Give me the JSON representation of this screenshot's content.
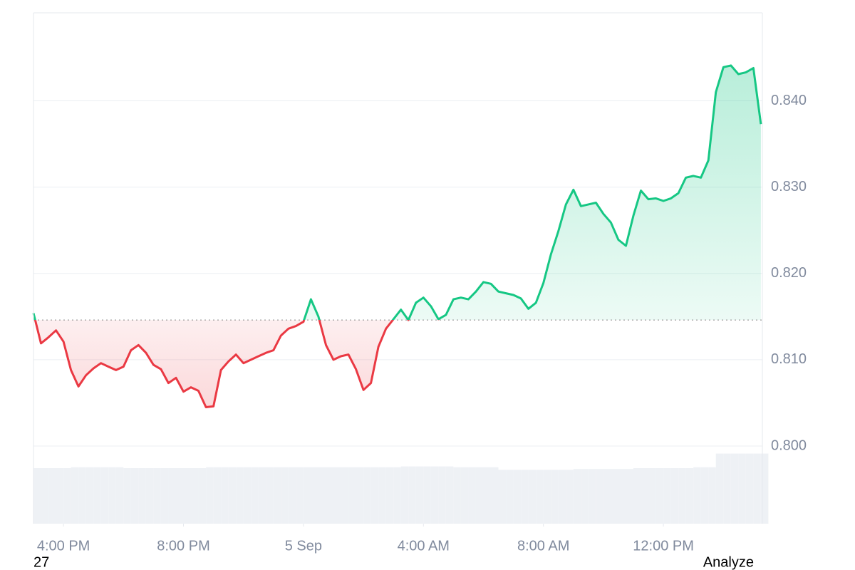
{
  "chart_data": {
    "type": "line",
    "x": [
      0,
      0.25,
      0.5,
      0.75,
      1,
      1.25,
      1.5,
      1.75,
      2,
      2.25,
      2.5,
      2.75,
      3,
      3.25,
      3.5,
      3.75,
      4,
      4.25,
      4.5,
      4.75,
      5,
      5.25,
      5.5,
      5.75,
      6,
      6.25,
      6.5,
      6.75,
      7,
      7.25,
      7.5,
      7.75,
      8,
      8.25,
      8.5,
      8.75,
      9,
      9.25,
      9.5,
      9.75,
      10,
      10.25,
      10.5,
      10.75,
      11,
      11.25,
      11.5,
      11.75,
      12,
      12.25,
      12.5,
      12.75,
      13,
      13.25,
      13.5,
      13.75,
      14,
      14.25,
      14.5,
      14.75,
      15,
      15.25,
      15.5,
      15.75,
      16,
      16.25,
      16.5,
      16.75,
      17,
      17.25,
      17.5,
      17.75,
      18,
      18.25,
      18.5,
      18.75,
      19,
      19.25,
      19.5,
      19.75,
      20,
      20.25,
      20.5,
      20.75,
      21,
      21.25,
      21.5,
      21.75,
      22,
      22.25,
      22.5,
      22.75,
      23,
      23.25,
      23.5,
      23.75,
      24,
      24.25
    ],
    "values": [
      0.8154,
      0.8119,
      0.8126,
      0.8134,
      0.8121,
      0.8088,
      0.8069,
      0.8082,
      0.809,
      0.8096,
      0.8092,
      0.8088,
      0.8092,
      0.8111,
      0.8117,
      0.8108,
      0.8094,
      0.8089,
      0.8073,
      0.8079,
      0.8063,
      0.8068,
      0.8064,
      0.8045,
      0.8046,
      0.8088,
      0.8098,
      0.8106,
      0.8096,
      0.81,
      0.8104,
      0.8108,
      0.8111,
      0.8128,
      0.8136,
      0.8139,
      0.8144,
      0.817,
      0.815,
      0.8117,
      0.81,
      0.8104,
      0.8106,
      0.8089,
      0.8065,
      0.8073,
      0.8115,
      0.8136,
      0.8147,
      0.8158,
      0.8146,
      0.8166,
      0.8172,
      0.8162,
      0.8147,
      0.8152,
      0.817,
      0.8172,
      0.817,
      0.8179,
      0.819,
      0.8188,
      0.8179,
      0.8177,
      0.8175,
      0.8171,
      0.8159,
      0.8166,
      0.8189,
      0.8222,
      0.8249,
      0.828,
      0.8297,
      0.8278,
      0.828,
      0.8282,
      0.8269,
      0.8259,
      0.8239,
      0.8232,
      0.8267,
      0.8296,
      0.8286,
      0.8287,
      0.8284,
      0.8287,
      0.8293,
      0.8311,
      0.8313,
      0.8311,
      0.8331,
      0.841,
      0.8439,
      0.8441,
      0.8431,
      0.8433,
      0.8438,
      0.8373
    ],
    "volume": [
      65,
      65,
      65,
      65,
      65,
      66,
      66,
      66,
      66,
      66,
      66,
      66,
      65,
      65,
      65,
      65,
      65,
      65,
      65,
      65,
      65,
      65,
      65,
      66,
      66,
      66,
      66,
      66,
      66,
      66,
      66,
      66,
      66,
      66,
      66,
      66,
      66,
      66,
      66,
      66,
      66,
      66,
      66,
      66,
      66,
      66,
      66,
      66,
      66,
      67,
      67,
      67,
      67,
      67,
      67,
      67,
      66,
      66,
      66,
      66,
      66,
      66,
      63,
      63,
      63,
      63,
      63,
      63,
      63,
      63,
      63,
      63,
      64,
      64,
      64,
      64,
      64,
      64,
      64,
      64,
      65,
      65,
      65,
      65,
      65,
      65,
      65,
      65,
      66,
      66,
      66,
      82,
      82,
      82,
      82,
      82,
      82,
      82
    ],
    "baseline": 0.8146,
    "up_color": "#16c784",
    "down_color": "#ea3943",
    "volume_color": "#eef1f5",
    "xlim": [
      0,
      24.3
    ],
    "ylim": [
      0.791,
      0.8502
    ],
    "vlim": [
      0,
      100
    ],
    "xticks": [
      {
        "value": 1,
        "label": "4:00 PM"
      },
      {
        "value": 5,
        "label": "8:00 PM"
      },
      {
        "value": 9,
        "label": "5 Sep"
      },
      {
        "value": 13,
        "label": "4:00 AM"
      },
      {
        "value": 17,
        "label": "8:00 AM"
      },
      {
        "value": 21,
        "label": "12:00 PM"
      }
    ],
    "yticks": [
      {
        "value": 0.8,
        "label": "0.800"
      },
      {
        "value": 0.81,
        "label": "0.810"
      },
      {
        "value": 0.82,
        "label": "0.820"
      },
      {
        "value": 0.83,
        "label": "0.830"
      },
      {
        "value": 0.84,
        "label": "0.840"
      }
    ],
    "grid": true
  },
  "footer": {
    "left": "27",
    "right": "Analyze"
  }
}
